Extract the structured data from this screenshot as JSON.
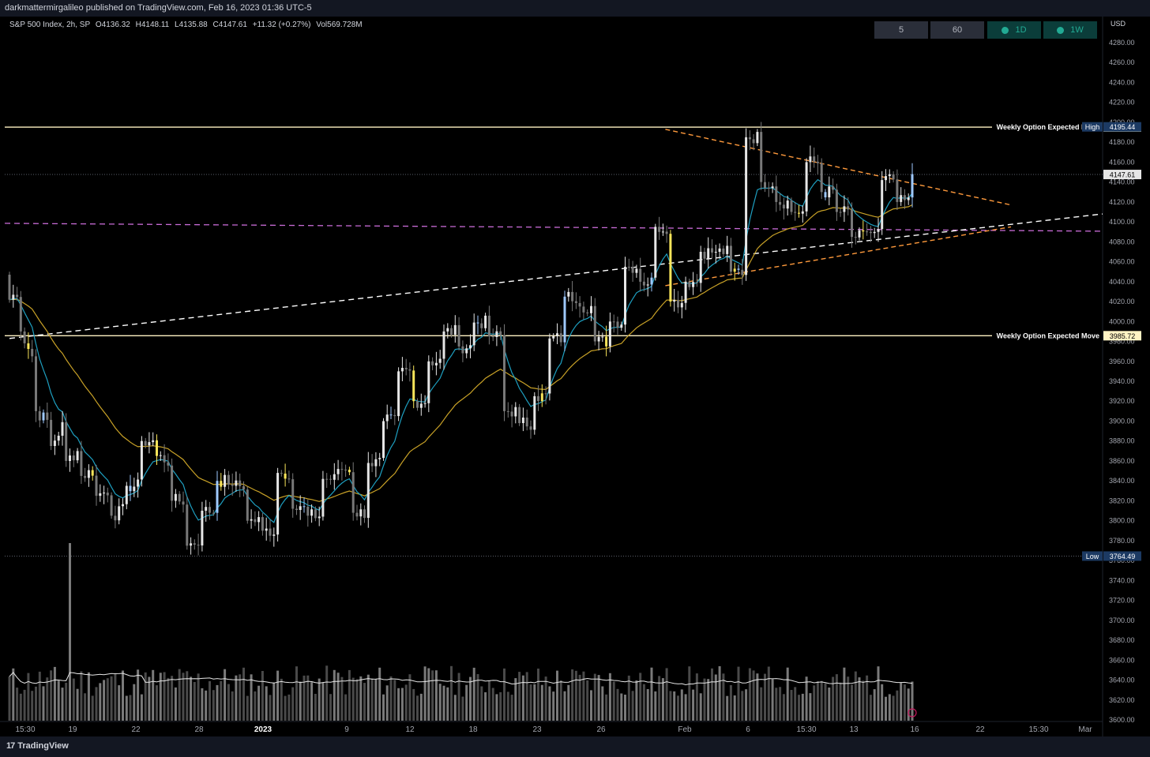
{
  "header": {
    "published": "darkmattermirgalileo published on TradingView.com, Feb 16, 2023 01:36 UTC-5"
  },
  "footer": {
    "brand": "TradingView"
  },
  "legend": {
    "symbol": "S&P 500 Index, 2h, SP",
    "open": "O4136.32",
    "high": "H4148.11",
    "low": "L4135.88",
    "close": "C4147.61",
    "change": "+11.32 (+0.27%)",
    "volume": "Vol569.728M"
  },
  "timeframes": [
    {
      "label": "5",
      "active": false
    },
    {
      "label": "60",
      "active": false
    },
    {
      "label": "1D",
      "active": true
    },
    {
      "label": "1W",
      "active": true
    }
  ],
  "price_scale": {
    "currency": "USD"
  },
  "labels": {
    "high_tag": "High",
    "high_value": "4195.44",
    "low_tag": "Low",
    "low_value": "3764.49",
    "last_price": "4147.61"
  },
  "colors": {
    "up": "#e6e6e6",
    "down": "#787878",
    "blue_candle": "#9ec9ff",
    "yellow_candle": "#f9e55a",
    "ema_fast": "#1e9fc0",
    "ema_slow": "#c9a227",
    "trend_white": "#ffffff",
    "trend_orange": "#ff9a3c",
    "pivot_magenta": "#c86bd6",
    "expected_move": "#fff3c4"
  },
  "chart_data": {
    "type": "candlestick",
    "title": "S&P 500 Index, 2h, SP",
    "ylabel": "USD",
    "ylim": [
      3600,
      4290
    ],
    "y_ticks": [
      4280,
      4260,
      4240,
      4220,
      4200,
      4180,
      4160,
      4140,
      4120,
      4100,
      4080,
      4060,
      4040,
      4020,
      4000,
      3980,
      3960,
      3940,
      3920,
      3900,
      3880,
      3860,
      3840,
      3820,
      3800,
      3780,
      3760,
      3740,
      3720,
      3700,
      3680,
      3660,
      3640,
      3620,
      3600
    ],
    "x_ticks": [
      "15:30",
      "19",
      "22",
      "28",
      "2023",
      "9",
      "12",
      "18",
      "23",
      "26",
      "Feb",
      "6",
      "15:30",
      "13",
      "16",
      "22",
      "15:30",
      "Mar"
    ],
    "anchors": [
      {
        "o": 4047,
        "c": 4018
      },
      {
        "o": 4030,
        "c": 3990
      },
      {
        "o": 3965,
        "c": 3910
      },
      {
        "o": 3900,
        "c": 3875
      },
      {
        "o": 3895,
        "c": 3860
      },
      {
        "o": 3870,
        "c": 3845
      },
      {
        "o": 3850,
        "c": 3825
      },
      {
        "o": 3830,
        "c": 3805
      },
      {
        "o": 3810,
        "c": 3835
      },
      {
        "o": 3835,
        "c": 3880
      },
      {
        "o": 3880,
        "c": 3865
      },
      {
        "o": 3860,
        "c": 3820
      },
      {
        "o": 3820,
        "c": 3775
      },
      {
        "o": 3780,
        "c": 3810
      },
      {
        "o": 3810,
        "c": 3840
      },
      {
        "o": 3840,
        "c": 3835
      },
      {
        "o": 3835,
        "c": 3800
      },
      {
        "o": 3800,
        "c": 3790
      },
      {
        "o": 3790,
        "c": 3848
      },
      {
        "o": 3848,
        "c": 3812
      },
      {
        "o": 3812,
        "c": 3805
      },
      {
        "o": 3805,
        "c": 3842
      },
      {
        "o": 3842,
        "c": 3852
      },
      {
        "o": 3852,
        "c": 3808
      },
      {
        "o": 3808,
        "c": 3858
      },
      {
        "o": 3858,
        "c": 3900
      },
      {
        "o": 3900,
        "c": 3950
      },
      {
        "o": 3950,
        "c": 3920
      },
      {
        "o": 3920,
        "c": 3960
      },
      {
        "o": 3960,
        "c": 3990
      },
      {
        "o": 3990,
        "c": 3975
      },
      {
        "o": 3975,
        "c": 3999
      },
      {
        "o": 3999,
        "c": 3985
      },
      {
        "o": 3985,
        "c": 3910
      },
      {
        "o": 3910,
        "c": 3898
      },
      {
        "o": 3898,
        "c": 3925
      },
      {
        "o": 3925,
        "c": 3983
      },
      {
        "o": 3983,
        "c": 4025
      },
      {
        "o": 4025,
        "c": 4015
      },
      {
        "o": 4015,
        "c": 3980
      },
      {
        "o": 3980,
        "c": 4000
      },
      {
        "o": 4000,
        "c": 4055
      },
      {
        "o": 4055,
        "c": 4040
      },
      {
        "o": 4040,
        "c": 4095
      },
      {
        "o": 4095,
        "c": 4020
      },
      {
        "o": 4020,
        "c": 4040
      },
      {
        "o": 4040,
        "c": 4070
      },
      {
        "o": 4070,
        "c": 4070
      },
      {
        "o": 4070,
        "c": 4050
      },
      {
        "o": 4050,
        "c": 4185
      },
      {
        "o": 4185,
        "c": 4140
      },
      {
        "o": 4140,
        "c": 4120
      },
      {
        "o": 4120,
        "c": 4110
      },
      {
        "o": 4110,
        "c": 4160
      },
      {
        "o": 4160,
        "c": 4130
      },
      {
        "o": 4130,
        "c": 4110
      },
      {
        "o": 4110,
        "c": 4085
      },
      {
        "o": 4085,
        "c": 4090
      },
      {
        "o": 4090,
        "c": 4142
      },
      {
        "o": 4142,
        "c": 4120
      },
      {
        "o": 4120,
        "c": 4148
      }
    ],
    "volume_scale": 1.0,
    "ema_fast_label": "",
    "ema_slow_label": "",
    "lines": [
      {
        "label": "Weekly Option Expected Move",
        "value": "4195.18",
        "price": 4195.18
      },
      {
        "label": "Weekly Option Expected Move",
        "value": "3985.72",
        "price": 3985.72
      }
    ],
    "pivot_level": 4097,
    "last_price": 4147.61,
    "range_high": 4195.44,
    "range_low": 3764.49,
    "trendlines": {
      "white_ascending": {
        "from": [
          0,
          3983
        ],
        "to": [
          1,
          4108
        ]
      },
      "orange_upper": {
        "from": [
          0.6,
          4193
        ],
        "to": [
          1,
          4117
        ]
      },
      "orange_lower": {
        "from": [
          0.6,
          4036
        ],
        "to": [
          1,
          4095
        ]
      }
    }
  }
}
